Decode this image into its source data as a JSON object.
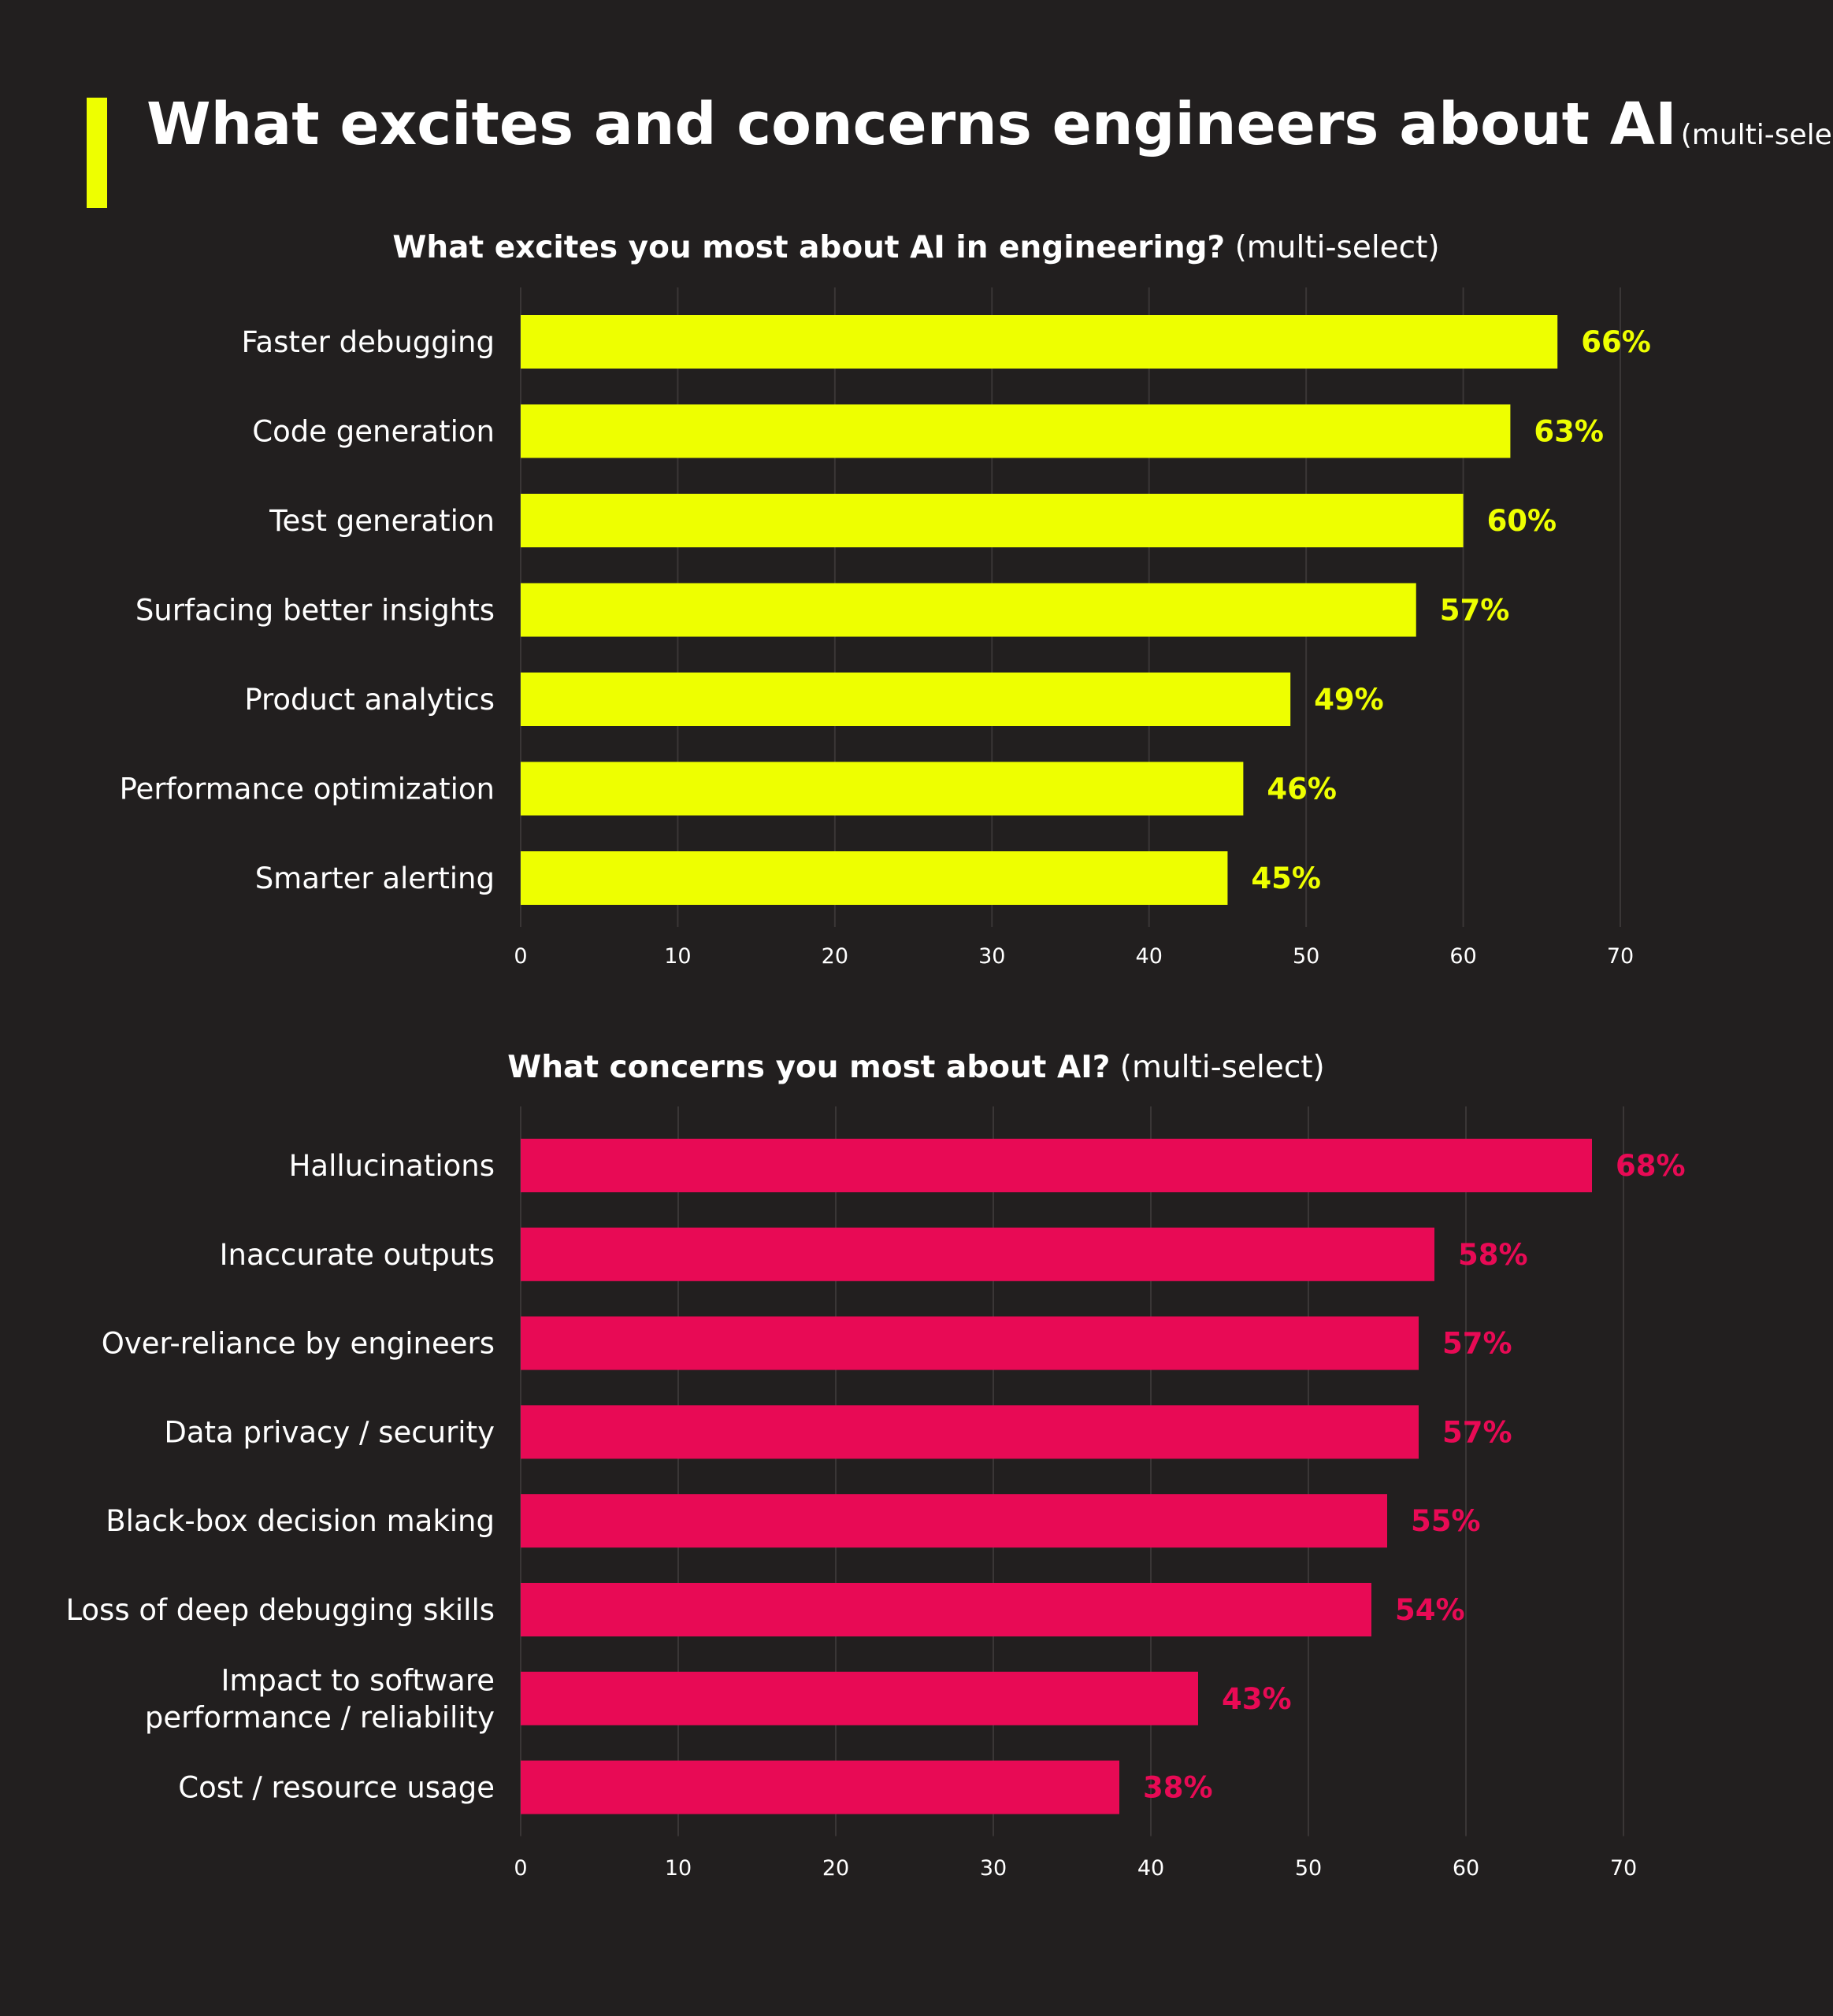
{
  "header": {
    "title": "What excites and concerns engineers about AI",
    "subtitle": "(multi-select)"
  },
  "colors": {
    "background": "#221f1f",
    "accent": "#eeff00",
    "excite": "#eeff00",
    "concern": "#e80a55",
    "grid": "#3a3636",
    "text": "#ffffff"
  },
  "chart_data": [
    {
      "type": "bar",
      "orientation": "horizontal",
      "title": "What excites you most about AI in engineering?",
      "title_note": "(multi-select)",
      "categories": [
        "Faster debugging",
        "Code generation",
        "Test generation",
        "Surfacing better insights",
        "Product analytics",
        "Performance optimization",
        "Smarter alerting"
      ],
      "values": [
        66,
        63,
        60,
        57,
        49,
        46,
        45
      ],
      "value_labels": [
        "66%",
        "63%",
        "60%",
        "57%",
        "49%",
        "46%",
        "45%"
      ],
      "xlim": [
        0,
        70
      ],
      "xticks": [
        0,
        10,
        20,
        30,
        40,
        50,
        60,
        70
      ],
      "grid": true,
      "color": "#eeff00"
    },
    {
      "type": "bar",
      "orientation": "horizontal",
      "title": "What concerns you most about AI?",
      "title_note": "(multi-select)",
      "categories": [
        "Hallucinations",
        "Inaccurate outputs",
        "Over-reliance by engineers",
        "Data privacy / security",
        "Black-box decision making",
        "Loss of deep debugging skills",
        "Impact to software performance / reliability",
        "Cost / resource usage"
      ],
      "category_lines": [
        [
          "Hallucinations"
        ],
        [
          "Inaccurate outputs"
        ],
        [
          "Over-reliance by engineers"
        ],
        [
          "Data privacy / security"
        ],
        [
          "Black-box decision making"
        ],
        [
          "Loss of deep debugging skills"
        ],
        [
          "Impact to software",
          "performance / reliability"
        ],
        [
          "Cost / resource usage"
        ]
      ],
      "values": [
        68,
        58,
        57,
        57,
        55,
        54,
        43,
        38
      ],
      "value_labels": [
        "68%",
        "58%",
        "57%",
        "57%",
        "55%",
        "54%",
        "43%",
        "38%"
      ],
      "xlim": [
        0,
        70
      ],
      "xticks": [
        0,
        10,
        20,
        30,
        40,
        50,
        60,
        70
      ],
      "grid": true,
      "color": "#e80a55"
    }
  ]
}
